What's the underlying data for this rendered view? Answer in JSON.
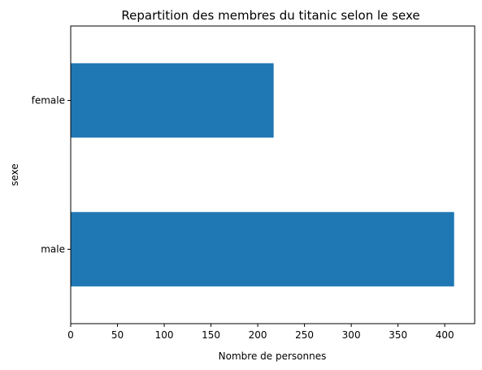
{
  "chart_data": {
    "type": "bar",
    "orientation": "horizontal",
    "title": "Repartition des membres du titanic selon le sexe",
    "xlabel": "Nombre de personnes",
    "ylabel": "sexe",
    "categories": [
      "male",
      "female"
    ],
    "values": [
      410,
      217
    ],
    "xlim": [
      0,
      432
    ],
    "xticks": [
      0,
      50,
      100,
      150,
      200,
      250,
      300,
      350,
      400
    ],
    "grid": false,
    "bar_color": "#1f77b4"
  }
}
